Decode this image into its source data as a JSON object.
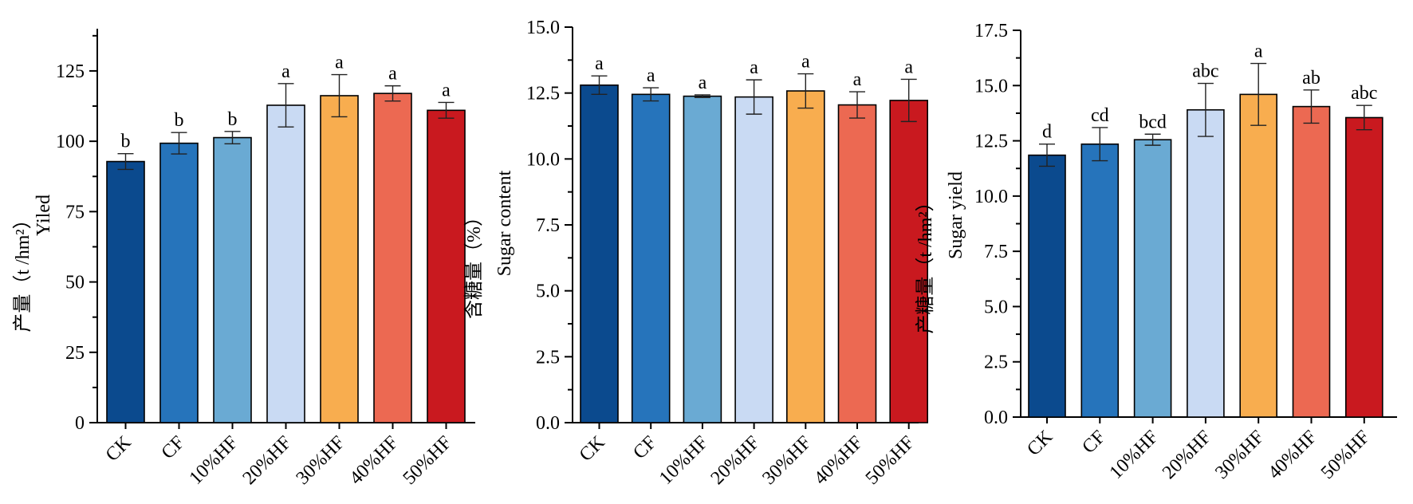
{
  "chart_data": [
    {
      "type": "bar",
      "categories": [
        "CK",
        "CF",
        "10%HF",
        "20%HF",
        "30%HF",
        "40%HF",
        "50%HF"
      ],
      "values": [
        92.8,
        99.3,
        101.3,
        112.8,
        116.2,
        117.0,
        111.0
      ],
      "errors": [
        2.8,
        3.8,
        2.2,
        7.7,
        7.5,
        2.7,
        2.8
      ],
      "significance": [
        "b",
        "b",
        "b",
        "a",
        "a",
        "a",
        "a"
      ],
      "ylabel_cn": "产量（t /hm²）",
      "ylabel_en": "Yiled",
      "ylim": [
        0,
        140
      ],
      "yticks": [
        0,
        25,
        50,
        75,
        100,
        125
      ],
      "ytick_labels": [
        "0",
        "25",
        "50",
        "75",
        "100",
        "125"
      ]
    },
    {
      "type": "bar",
      "categories": [
        "CK",
        "CF",
        "10%HF",
        "20%HF",
        "30%HF",
        "40%HF",
        "50%HF"
      ],
      "values": [
        12.8,
        12.45,
        12.38,
        12.35,
        12.58,
        12.05,
        12.22
      ],
      "errors": [
        0.35,
        0.25,
        0.05,
        0.65,
        0.65,
        0.5,
        0.8
      ],
      "significance": [
        "a",
        "a",
        "a",
        "a",
        "a",
        "a",
        "a"
      ],
      "ylabel_cn": "含糖量（%）",
      "ylabel_en": "Sugar content",
      "ylim": [
        0,
        15
      ],
      "yticks": [
        0,
        2.5,
        5,
        7.5,
        10,
        12.5,
        15
      ],
      "ytick_labels": [
        "0.0",
        "2.5",
        "5.0",
        "7.5",
        "10.0",
        "12.5",
        "15.0"
      ]
    },
    {
      "type": "bar",
      "categories": [
        "CK",
        "CF",
        "10%HF",
        "20%HF",
        "30%HF",
        "40%HF",
        "50%HF"
      ],
      "values": [
        11.85,
        12.35,
        12.55,
        13.9,
        14.6,
        14.05,
        13.55
      ],
      "errors": [
        0.5,
        0.75,
        0.25,
        1.2,
        1.4,
        0.75,
        0.55
      ],
      "significance": [
        "d",
        "cd",
        "bcd",
        "abc",
        "a",
        "ab",
        "abc"
      ],
      "ylabel_cn": "产糖量（t /hm²）",
      "ylabel_en": "Sugar yield",
      "ylim": [
        0,
        17.5
      ],
      "yticks": [
        0,
        2.5,
        5,
        7.5,
        10,
        12.5,
        15,
        17.5
      ],
      "ytick_labels": [
        "0.0",
        "2.5",
        "5.0",
        "7.5",
        "10.0",
        "12.5",
        "15.0",
        "17.5"
      ]
    }
  ],
  "bar_colors": [
    "#0b4a8e",
    "#2674bb",
    "#6aaad3",
    "#c9daf3",
    "#f8ad4f",
    "#ec6952",
    "#c9191f"
  ]
}
